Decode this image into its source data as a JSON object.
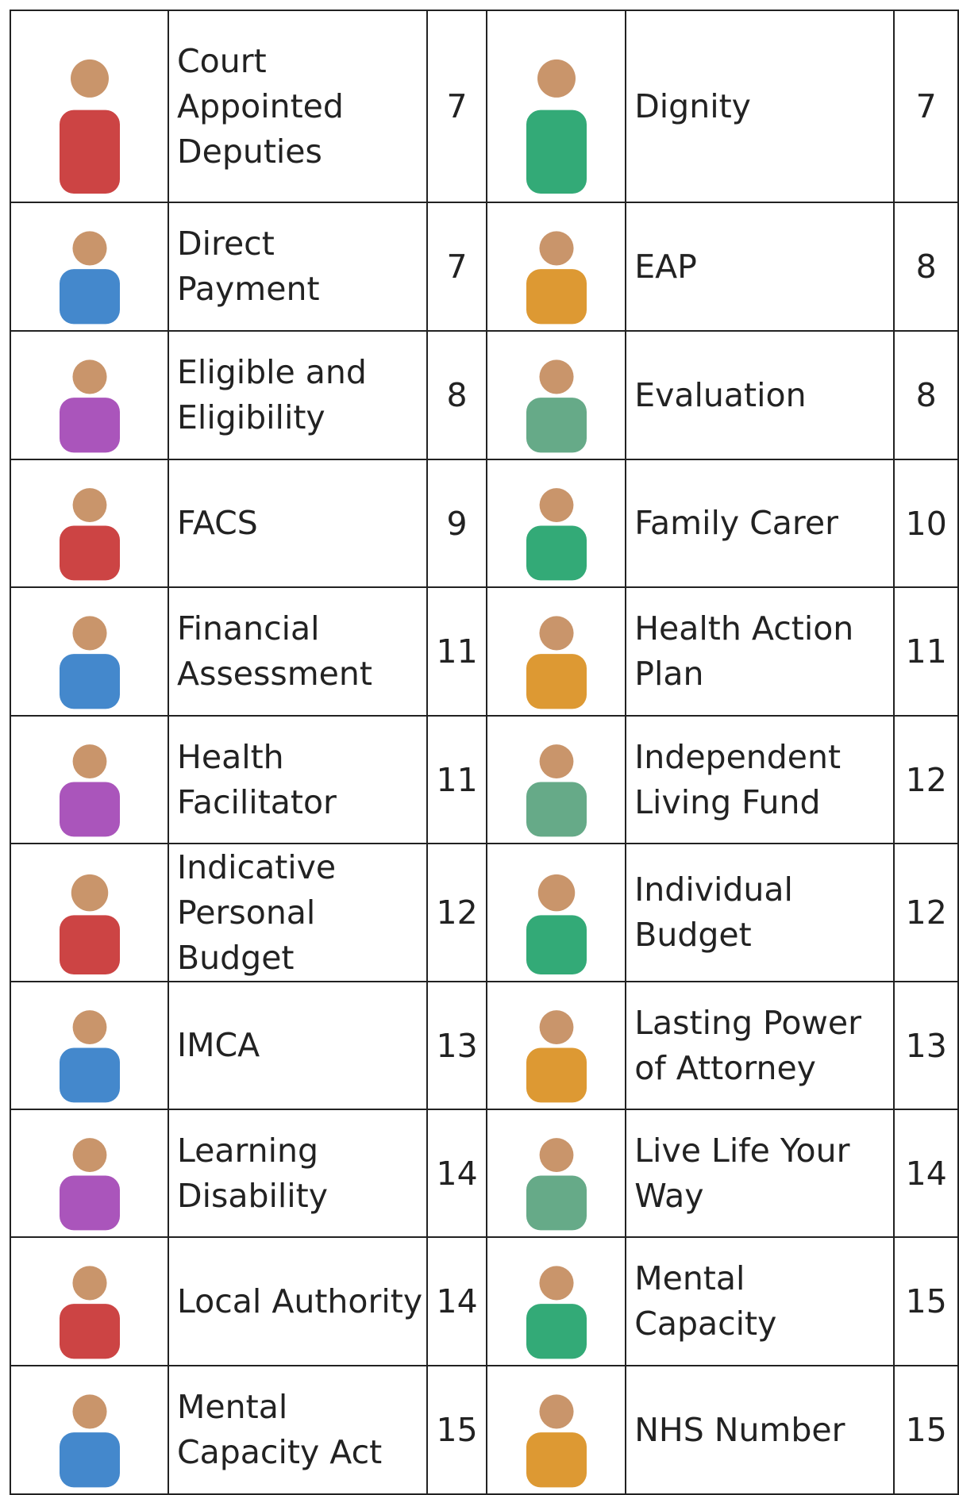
{
  "rows": [
    {
      "left": {
        "term": "Court Appointed Deputies",
        "page": 7
      },
      "right": {
        "term": "Dignity",
        "page": 7
      }
    },
    {
      "left": {
        "term": "Direct Payment",
        "page": 7
      },
      "right": {
        "term": "EAP",
        "page": 8
      }
    },
    {
      "left": {
        "term": "Eligible and Eligibility",
        "page": 8
      },
      "right": {
        "term": "Evaluation",
        "page": 8
      }
    },
    {
      "left": {
        "term": "FACS",
        "page": 9
      },
      "right": {
        "term": "Family Carer",
        "page": 10
      }
    },
    {
      "left": {
        "term": "Financial Assessment",
        "page": 11
      },
      "right": {
        "term": "Health Action Plan",
        "page": 11
      }
    },
    {
      "left": {
        "term": "Health Facilitator",
        "page": 11
      },
      "right": {
        "term": "Independent Living Fund",
        "page": 12
      }
    },
    {
      "left": {
        "term": "Indicative Personal Budget",
        "page": 12
      },
      "right": {
        "term": "Individual Budget",
        "page": 12
      }
    },
    {
      "left": {
        "term": "IMCA",
        "page": 13
      },
      "right": {
        "term": "Lasting Power of Attorney",
        "page": 13
      }
    },
    {
      "left": {
        "term": "Learning Disability",
        "page": 14
      },
      "right": {
        "term": "Live Life Your Way",
        "page": 14
      }
    },
    {
      "left": {
        "term": "Local Authority",
        "page": 14
      },
      "right": {
        "term": "Mental Capacity",
        "page": 15
      }
    },
    {
      "left": {
        "term": "Mental Capacity Act",
        "page": 15
      },
      "right": {
        "term": "NHS Number",
        "page": 15
      }
    }
  ]
}
